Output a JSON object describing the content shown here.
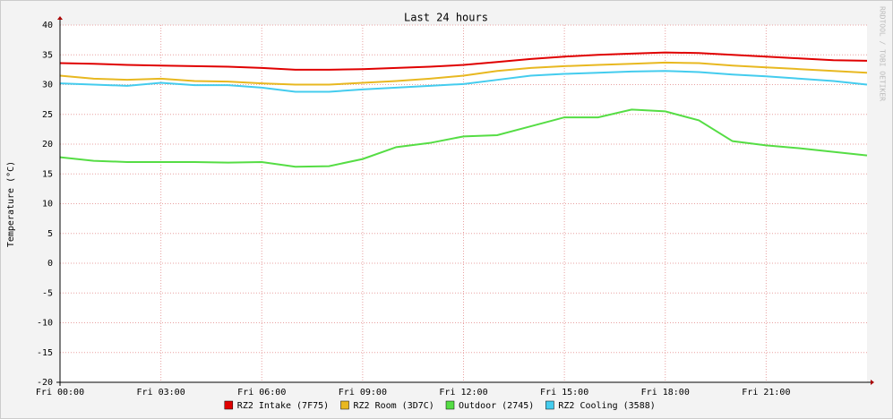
{
  "chart_data": {
    "type": "line",
    "title": "Last 24 hours",
    "y_label": "Temperature (°C)",
    "watermark": "RRDTOOL / TOBI OETIKER",
    "x": [
      0,
      1,
      2,
      3,
      4,
      5,
      6,
      7,
      8,
      9,
      10,
      11,
      12,
      13,
      14,
      15,
      16,
      17,
      18,
      19,
      20,
      21,
      22,
      23,
      24
    ],
    "xlim": [
      0,
      24
    ],
    "xticks": [
      {
        "value": 0,
        "label": "Fri 00:00"
      },
      {
        "value": 3,
        "label": "Fri 03:00"
      },
      {
        "value": 6,
        "label": "Fri 06:00"
      },
      {
        "value": 9,
        "label": "Fri 09:00"
      },
      {
        "value": 12,
        "label": "Fri 12:00"
      },
      {
        "value": 15,
        "label": "Fri 15:00"
      },
      {
        "value": 18,
        "label": "Fri 18:00"
      },
      {
        "value": 21,
        "label": "Fri 21:00"
      }
    ],
    "ylim": [
      -20,
      40
    ],
    "yticks": [
      -20,
      -15,
      -10,
      -5,
      0,
      5,
      10,
      15,
      20,
      25,
      30,
      35,
      40
    ],
    "grid": true,
    "series": [
      {
        "name": "RZ2 Intake (7F75)",
        "color": "#e00000",
        "values": [
          33.6,
          33.5,
          33.3,
          33.2,
          33.1,
          33.0,
          32.8,
          32.5,
          32.5,
          32.6,
          32.8,
          33.0,
          33.3,
          33.8,
          34.3,
          34.7,
          35.0,
          35.2,
          35.4,
          35.3,
          35.0,
          34.7,
          34.4,
          34.1,
          34.0
        ]
      },
      {
        "name": "RZ2 Room (3D7C)",
        "color": "#e8b820",
        "values": [
          31.5,
          31.0,
          30.8,
          31.0,
          30.6,
          30.5,
          30.2,
          30.0,
          30.0,
          30.3,
          30.6,
          31.0,
          31.5,
          32.3,
          32.8,
          33.1,
          33.3,
          33.5,
          33.7,
          33.6,
          33.2,
          32.9,
          32.6,
          32.3,
          32.0
        ]
      },
      {
        "name": "Outdoor (2745)",
        "color": "#55dd44",
        "values": [
          17.8,
          17.2,
          17.0,
          17.0,
          17.0,
          16.9,
          17.0,
          16.2,
          16.3,
          17.5,
          19.5,
          20.2,
          21.3,
          21.5,
          23.0,
          24.5,
          24.5,
          25.8,
          25.5,
          24.0,
          20.5,
          19.8,
          19.3,
          18.7,
          18.1
        ]
      },
      {
        "name": "RZ2 Cooling (3588)",
        "color": "#44ccee",
        "values": [
          30.2,
          30.0,
          29.8,
          30.3,
          29.9,
          29.9,
          29.5,
          28.8,
          28.8,
          29.2,
          29.5,
          29.8,
          30.1,
          30.8,
          31.5,
          31.8,
          32.0,
          32.2,
          32.3,
          32.1,
          31.7,
          31.4,
          31.0,
          30.6,
          30.0
        ]
      }
    ]
  }
}
